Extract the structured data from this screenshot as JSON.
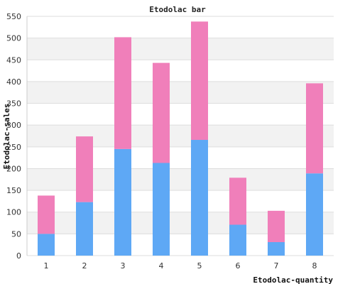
{
  "chart_data": {
    "type": "bar",
    "stacked": true,
    "title": "Etodolac bar",
    "xlabel": "Etodolac-quantity",
    "ylabel": "Etodolac-sales",
    "categories": [
      "1",
      "2",
      "3",
      "4",
      "5",
      "6",
      "7",
      "8"
    ],
    "series": [
      {
        "values": [
          50,
          123,
          245,
          213,
          266,
          71,
          31,
          189
        ],
        "color": "#5ea8f5"
      },
      {
        "values": [
          88,
          151,
          257,
          230,
          272,
          108,
          72,
          207
        ],
        "color": "#f07fba"
      }
    ],
    "ylim": [
      0,
      550
    ],
    "yticks": [
      0,
      50,
      100,
      150,
      200,
      250,
      300,
      350,
      400,
      450,
      500,
      550
    ],
    "grid": true,
    "band_colors": [
      "#ffffff",
      "#f2f2f2"
    ]
  }
}
